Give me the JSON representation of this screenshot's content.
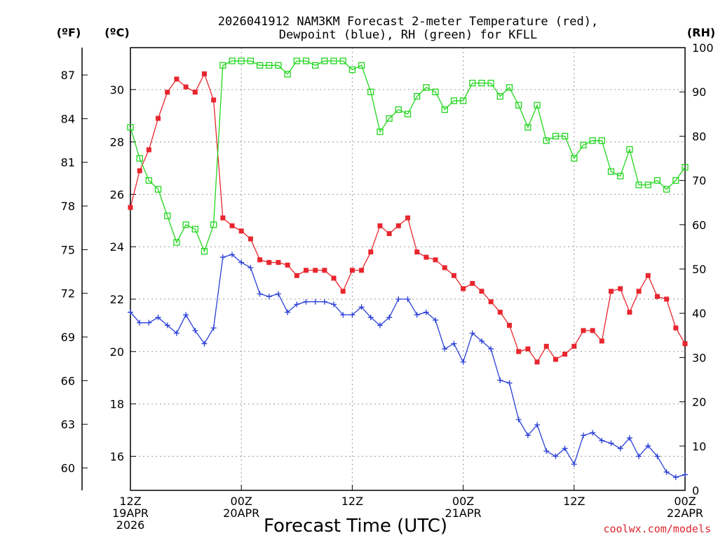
{
  "chart_data": {
    "type": "line",
    "title_line1": "2026041912 NAM3KM Forecast 2-meter Temperature (red),",
    "title_line2": "Dewpoint (blue), RH (green) for KFLL",
    "xlabel": "Forecast Time (UTC)",
    "credit": "coolwx.com/models",
    "left_outer_label": "(ºF)",
    "left_inner_label": "(ºC)",
    "right_label": "(RH)",
    "x_range_hours": [
      0,
      60
    ],
    "y_celsius_range": [
      14.7,
      31.6
    ],
    "y_rh_range": [
      0,
      100
    ],
    "x_ticks": [
      {
        "hour": 0,
        "line1": "12Z",
        "line2": "19APR",
        "line3": "2026"
      },
      {
        "hour": 12,
        "line1": "00Z",
        "line2": "20APR",
        "line3": ""
      },
      {
        "hour": 24,
        "line1": "12Z",
        "line2": "",
        "line3": ""
      },
      {
        "hour": 36,
        "line1": "00Z",
        "line2": "21APR",
        "line3": ""
      },
      {
        "hour": 48,
        "line1": "12Z",
        "line2": "",
        "line3": ""
      },
      {
        "hour": 60,
        "line1": "00Z",
        "line2": "22APR",
        "line3": ""
      }
    ],
    "c_ticks": [
      "16",
      "18",
      "20",
      "22",
      "24",
      "26",
      "28",
      "30"
    ],
    "f_ticks": [
      "60",
      "63",
      "66",
      "69",
      "72",
      "75",
      "78",
      "81",
      "84",
      "87"
    ],
    "rh_ticks": [
      "0",
      "10",
      "20",
      "30",
      "40",
      "50",
      "60",
      "70",
      "80",
      "90",
      "100"
    ],
    "series": [
      {
        "name": "2-meter Temperature",
        "units": "degC",
        "color": "#e8262e",
        "marker": "filled-square",
        "values": [
          25.5,
          26.9,
          27.7,
          28.9,
          29.9,
          30.4,
          30.1,
          29.9,
          30.6,
          29.6,
          25.1,
          24.8,
          24.6,
          24.3,
          23.5,
          23.4,
          23.4,
          23.3,
          22.9,
          23.1,
          23.1,
          23.1,
          22.8,
          22.3,
          23.1,
          23.1,
          23.8,
          24.8,
          24.5,
          24.8,
          25.1,
          23.8,
          23.6,
          23.5,
          23.2,
          22.9,
          22.4,
          22.6,
          22.3,
          21.9,
          21.5,
          21.0,
          20.0,
          20.1,
          19.6,
          20.2,
          19.7,
          19.9,
          20.2,
          20.8,
          20.8,
          20.4,
          22.3,
          22.4,
          21.5,
          22.3,
          22.9,
          22.1,
          22.0,
          20.9,
          20.3
        ]
      },
      {
        "name": "Dewpoint",
        "units": "degC",
        "color": "#2a3fd8",
        "marker": "plus",
        "values": [
          21.5,
          21.1,
          21.1,
          21.3,
          21.0,
          20.7,
          21.4,
          20.8,
          20.3,
          20.9,
          23.6,
          23.7,
          23.4,
          23.2,
          22.2,
          22.1,
          22.2,
          21.5,
          21.8,
          21.9,
          21.9,
          21.9,
          21.8,
          21.4,
          21.4,
          21.7,
          21.3,
          21.0,
          21.3,
          22.0,
          22.0,
          21.4,
          21.5,
          21.2,
          20.1,
          20.3,
          19.6,
          20.7,
          20.4,
          20.1,
          18.9,
          18.8,
          17.4,
          16.8,
          17.2,
          16.2,
          16.0,
          16.3,
          15.7,
          16.8,
          16.9,
          16.6,
          16.5,
          16.3,
          16.7,
          16.0,
          16.4,
          16.0,
          15.4,
          15.2,
          15.3
        ]
      },
      {
        "name": "RH",
        "units": "percent",
        "color": "#22d61e",
        "marker": "open-square",
        "values": [
          82,
          75,
          70,
          68,
          62,
          56,
          60,
          59,
          54,
          60,
          96,
          97,
          97,
          97,
          96,
          96,
          96,
          94,
          97,
          97,
          96,
          97,
          97,
          97,
          95,
          96,
          90,
          81,
          84,
          86,
          85,
          89,
          91,
          90,
          86,
          88,
          88,
          92,
          92,
          92,
          89,
          91,
          87,
          82,
          87,
          79,
          80,
          80,
          75,
          78,
          79,
          79,
          72,
          71,
          77,
          69,
          69,
          70,
          68,
          70,
          73
        ]
      }
    ]
  }
}
